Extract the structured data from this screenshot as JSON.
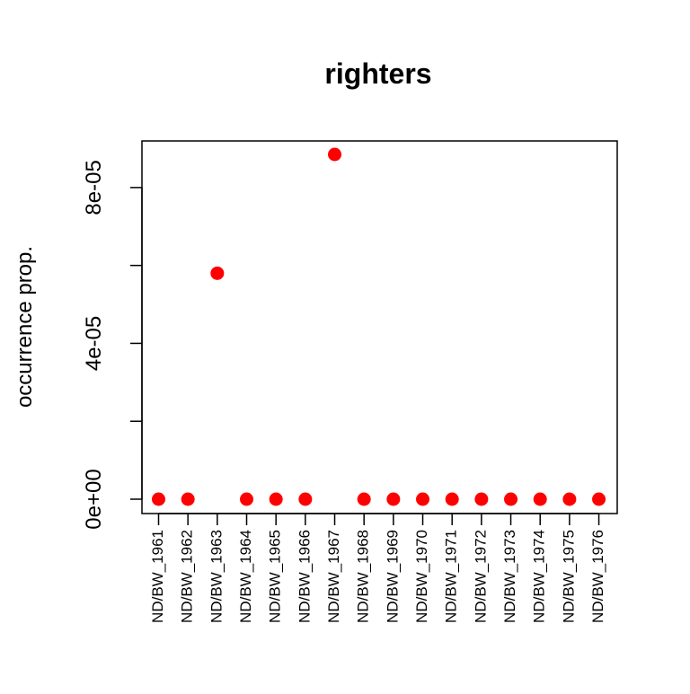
{
  "chart_data": {
    "type": "scatter",
    "title": "righters",
    "xlabel": "",
    "ylabel": "occurrence prop.",
    "categories": [
      "ND/BW_1961",
      "ND/BW_1962",
      "ND/BW_1963",
      "ND/BW_1964",
      "ND/BW_1965",
      "ND/BW_1966",
      "ND/BW_1967",
      "ND/BW_1968",
      "ND/BW_1969",
      "ND/BW_1970",
      "ND/BW_1971",
      "ND/BW_1972",
      "ND/BW_1973",
      "ND/BW_1974",
      "ND/BW_1975",
      "ND/BW_1976"
    ],
    "values": [
      0,
      0,
      5.8e-05,
      0,
      0,
      0,
      8.85e-05,
      0,
      0,
      0,
      0,
      0,
      0,
      0,
      0,
      0
    ],
    "ylim": [
      0,
      8.85e-05
    ],
    "yticks": [
      0,
      2e-05,
      4e-05,
      6e-05,
      8e-05
    ],
    "ytick_labels": [
      "0e+00",
      "",
      "4e-05",
      "",
      "8e-05"
    ],
    "point_color": "#ff0000",
    "grid": false,
    "legend": "none"
  }
}
